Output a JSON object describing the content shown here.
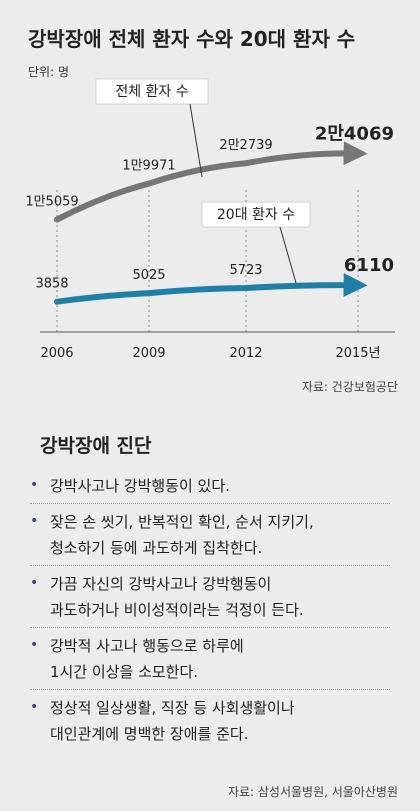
{
  "chart_data": {
    "type": "line",
    "title": "강박장애 전체 환자 수와 20대 환자 수",
    "unit": "단위: 명",
    "x": [
      "2006",
      "2009",
      "2012",
      "2015년"
    ],
    "series": [
      {
        "name": "전체 환자 수",
        "values": [
          15059,
          19971,
          22739,
          24069
        ],
        "value_labels": [
          "1만5059",
          "1만9971",
          "2만2739",
          "2만4069"
        ],
        "color": "#767676"
      },
      {
        "name": "20대 환자 수",
        "values": [
          3858,
          5025,
          5723,
          6110
        ],
        "value_labels": [
          "3858",
          "5025",
          "5723",
          "6110"
        ],
        "color": "#1f7fa6"
      }
    ],
    "source": "자료: 건강보험공단",
    "grid": true
  },
  "diagnosis": {
    "title": "강박장애 진단",
    "items": [
      [
        "강박사고나 강박행동이 있다."
      ],
      [
        "잦은 손 씻기, 반복적인 확인, 순서 지키기,",
        "청소하기 등에 과도하게 집착한다."
      ],
      [
        "가끔 자신의 강박사고나 강박행동이",
        "과도하거나 비이성적이라는 걱정이 든다."
      ],
      [
        "강박적 사고나 행동으로 하루에",
        "1시간 이상을 소모한다."
      ],
      [
        "정상적 일상생활, 직장 등 사회생활이나",
        "대인관계에 명백한 장애를 준다."
      ]
    ],
    "bullet": "•",
    "source": "자료: 삼성서울병원, 서울아산병원"
  }
}
